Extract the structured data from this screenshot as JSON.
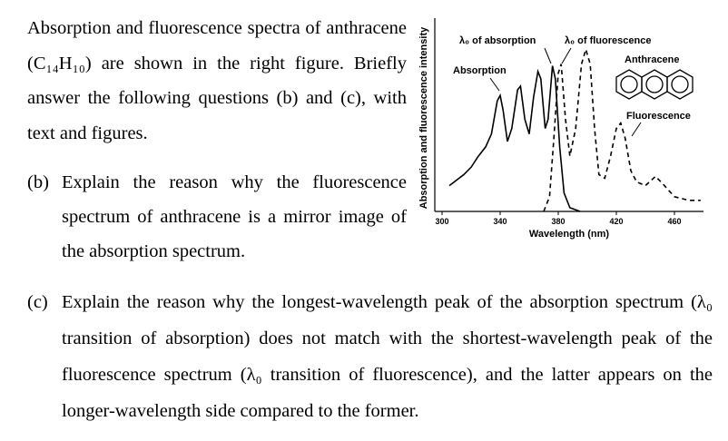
{
  "intro": "Absorption and fluorescence spectra of anthracene (C₁₄H₁₀) are shown in the right figure. Briefly answer the following questions (b) and (c), with text and figures.",
  "questions": [
    {
      "label": "(b)",
      "text": "Explain the reason why the fluorescence spectrum of anthracene is a mirror image of the absorption spectrum."
    },
    {
      "label": "(c)",
      "text": "Explain the reason why the longest-wavelength peak of the absorption spectrum (λ₀ transition of absorption) does not match with the shortest-wavelength peak of the fluorescence spectrum (λ₀ transition of fluorescence), and the latter appears on the longer-wavelength side compared to the former."
    }
  ],
  "chart_data": {
    "type": "line",
    "xlabel": "Wavelength (nm)",
    "ylabel": "Absorption and fluorescence intensity",
    "xlim": [
      295,
      480
    ],
    "xticks": [
      300,
      340,
      380,
      420,
      460
    ],
    "ylim": [
      0,
      1
    ],
    "annotations": [
      "λ₀ of absorption",
      "λ₀ of fluorescence",
      "Anthracene",
      "Absorption",
      "Fluorescence"
    ],
    "series": [
      {
        "color": "#000000",
        "dash": false,
        "x": [
          305,
          310,
          315,
          320,
          325,
          330,
          334,
          338,
          340,
          342,
          345,
          348,
          352,
          354,
          357,
          360,
          363,
          366,
          368,
          371,
          373,
          376,
          378,
          381,
          384,
          388,
          395
        ],
        "values": [
          0.14,
          0.17,
          0.2,
          0.24,
          0.3,
          0.35,
          0.42,
          0.6,
          0.63,
          0.55,
          0.38,
          0.45,
          0.66,
          0.68,
          0.5,
          0.42,
          0.62,
          0.76,
          0.72,
          0.45,
          0.5,
          0.79,
          0.72,
          0.35,
          0.1,
          0.02,
          0
        ]
      },
      {
        "color": "#000000",
        "dash": true,
        "x": [
          370,
          374,
          377,
          380,
          382,
          385,
          388,
          392,
          396,
          399,
          402,
          405,
          408,
          412,
          416,
          420,
          423,
          426,
          430,
          434,
          440,
          447,
          452,
          460,
          470,
          478
        ],
        "values": [
          0,
          0.08,
          0.4,
          0.75,
          0.8,
          0.5,
          0.3,
          0.45,
          0.8,
          0.88,
          0.8,
          0.45,
          0.2,
          0.18,
          0.3,
          0.45,
          0.48,
          0.4,
          0.22,
          0.16,
          0.14,
          0.19,
          0.15,
          0.08,
          0.06,
          0.06
        ]
      }
    ]
  }
}
